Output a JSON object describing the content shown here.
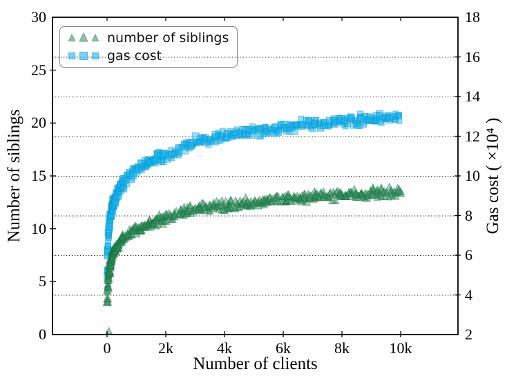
{
  "chart_data": {
    "type": "scatter",
    "title": "",
    "xlabel": "Number of clients",
    "ylabel_left": "Number of siblings",
    "ylabel_right": "Gas cost ( ×10⁴ )",
    "xlim": [
      -1859,
      11953
    ],
    "ylim_left": [
      0,
      30
    ],
    "ylim_right": [
      2,
      18
    ],
    "x_ticks": {
      "values": [
        0,
        2000,
        4000,
        6000,
        8000,
        10000
      ],
      "labels": [
        "0",
        "2k",
        "4k",
        "6k",
        "8k",
        "10k"
      ]
    },
    "y_ticks_left": {
      "values": [
        0,
        5,
        10,
        15,
        20,
        25,
        30
      ],
      "labels": [
        "0",
        "5",
        "10",
        "15",
        "20",
        "25",
        "30"
      ]
    },
    "y_ticks_right": {
      "values": [
        2,
        4,
        6,
        8,
        10,
        12,
        14,
        16,
        18
      ],
      "labels": [
        "2",
        "4",
        "6",
        "8",
        "10",
        "12",
        "14",
        "16",
        "18"
      ]
    },
    "grid": {
      "type": "horizontal-dotted",
      "at_right_axis_values": [
        4,
        6,
        8,
        10,
        12,
        14,
        16
      ]
    },
    "legend_position": "upper left",
    "colors": {
      "background": "#ffffff",
      "frame": "#000000",
      "grid": "#222222",
      "legend_border": "#858585",
      "text": "#000000"
    },
    "x": [
      10,
      20,
      30,
      45,
      60,
      80,
      100,
      120,
      140,
      160,
      180,
      200,
      225,
      250,
      275,
      300,
      350,
      400,
      450,
      500,
      550,
      600,
      700,
      800,
      900,
      1000,
      1100,
      1200,
      1300,
      1400,
      1500,
      1600,
      1700,
      1800,
      1900,
      2000,
      2150,
      2300,
      2450,
      2600,
      2750,
      2900,
      3050,
      3200,
      3350,
      3500,
      3650,
      3800,
      3950,
      4100,
      4250,
      4400,
      4550,
      4700,
      4850,
      5000,
      5150,
      5300,
      5450,
      5600,
      5750,
      5900,
      6050,
      6200,
      6350,
      6500,
      6650,
      6800,
      6950,
      7100,
      7250,
      7400,
      7550,
      7700,
      7850,
      8000,
      8150,
      8300,
      8450,
      8600,
      8750,
      8900,
      9050,
      9200,
      9350,
      9500,
      9650,
      9800,
      9950
    ],
    "series": [
      {
        "name": "number of siblings",
        "axis": "left",
        "marker": "triangle",
        "color": "#2F8F5B",
        "edge_color": "#14713F",
        "alpha": 0.45,
        "spread": 0.55,
        "y": [
          3.32,
          4.32,
          4.91,
          5.49,
          5.91,
          6.32,
          6.64,
          6.91,
          7.13,
          7.32,
          7.49,
          7.64,
          7.81,
          7.97,
          8.1,
          8.23,
          8.45,
          8.64,
          8.81,
          8.97,
          9.1,
          9.23,
          9.45,
          9.64,
          9.81,
          9.97,
          10.1,
          10.23,
          10.34,
          10.45,
          10.55,
          10.64,
          10.73,
          10.81,
          10.89,
          11.0,
          11.12,
          11.24,
          11.36,
          11.59,
          11.68,
          11.75,
          11.82,
          11.89,
          11.96,
          12.02,
          12.08,
          12.14,
          12.2,
          12.25,
          12.3,
          12.35,
          12.4,
          12.45,
          12.49,
          12.54,
          12.58,
          12.62,
          12.66,
          12.7,
          12.74,
          12.78,
          12.81,
          12.85,
          12.88,
          12.92,
          12.95,
          12.98,
          13.01,
          13.04,
          13.07,
          13.1,
          13.13,
          13.16,
          13.19,
          13.22,
          13.24,
          13.26,
          13.28,
          13.3,
          13.32,
          13.34,
          13.36,
          13.38,
          13.4,
          13.42,
          13.43,
          13.45,
          13.46
        ],
        "outliers": [
          {
            "x": 60,
            "y": 0.35
          }
        ]
      },
      {
        "name": "gas cost",
        "axis": "right",
        "marker": "square",
        "color": "#19B5F1",
        "edge_color": "#0795CC",
        "alpha": 0.45,
        "spread": 0.35,
        "y": [
          5.24,
          6.0,
          6.44,
          6.88,
          7.2,
          7.51,
          7.75,
          7.96,
          8.12,
          8.27,
          8.4,
          8.51,
          8.64,
          8.76,
          8.86,
          8.96,
          9.12,
          9.27,
          9.4,
          9.52,
          9.62,
          9.72,
          9.88,
          10.03,
          10.16,
          10.28,
          10.38,
          10.47,
          10.56,
          10.64,
          10.72,
          10.79,
          10.85,
          10.91,
          10.97,
          11.03,
          11.15,
          11.25,
          11.35,
          11.52,
          11.58,
          11.64,
          11.69,
          11.74,
          11.79,
          11.84,
          11.89,
          11.93,
          11.98,
          12.02,
          12.05,
          12.09,
          12.13,
          12.16,
          12.2,
          12.23,
          12.26,
          12.3,
          12.33,
          12.36,
          12.39,
          12.41,
          12.44,
          12.47,
          12.49,
          12.52,
          12.55,
          12.57,
          12.59,
          12.61,
          12.64,
          12.66,
          12.68,
          12.7,
          12.72,
          12.75,
          12.76,
          12.78,
          12.8,
          12.82,
          12.84,
          12.86,
          12.87,
          12.89,
          12.9,
          12.92,
          12.93,
          12.95,
          12.96
        ],
        "outliers": []
      }
    ]
  }
}
